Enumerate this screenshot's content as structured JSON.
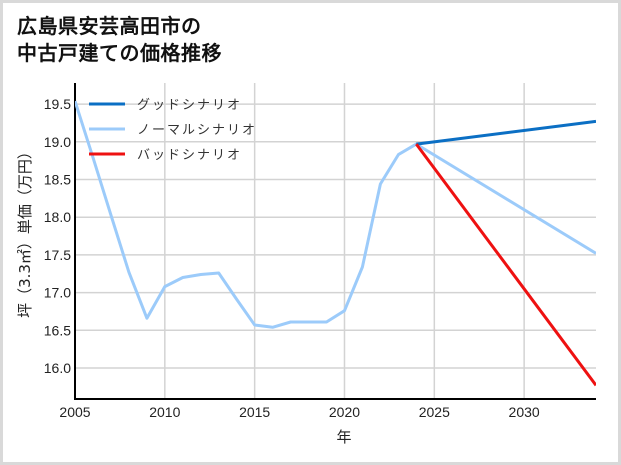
{
  "title": {
    "line1": "広島県安芸高田市の",
    "line2": "中古戸建ての価格推移"
  },
  "chart_data": {
    "type": "line",
    "title": "広島県安芸高田市の中古戸建ての価格推移",
    "xlabel": "年",
    "ylabel": "坪（3.3㎡）単価（万円）",
    "xlim": [
      2005,
      2034
    ],
    "ylim": [
      15.6,
      19.75
    ],
    "x_ticks": [
      2005,
      2010,
      2015,
      2020,
      2025,
      2030
    ],
    "y_ticks": [
      16.0,
      16.5,
      17.0,
      17.5,
      18.0,
      18.5,
      19.0,
      19.5
    ],
    "y_tick_labels": [
      "16.0",
      "16.5",
      "17.0",
      "17.5",
      "18.0",
      "18.5",
      "19.0",
      "19.5"
    ],
    "grid": true,
    "legend_position": "upper left",
    "series": [
      {
        "name": "グッドシナリオ",
        "color": "#0b6fc4",
        "x": [
          2024,
          2034
        ],
        "y": [
          18.97,
          19.27
        ]
      },
      {
        "name": "ノーマルシナリオ",
        "color": "#9ccbfa",
        "x": [
          2005,
          2006,
          2007,
          2008,
          2009,
          2010,
          2011,
          2012,
          2013,
          2014,
          2015,
          2016,
          2017,
          2018,
          2019,
          2020,
          2021,
          2022,
          2023,
          2024,
          2034
        ],
        "y": [
          19.54,
          18.79,
          18.03,
          17.27,
          16.66,
          17.08,
          17.2,
          17.24,
          17.26,
          16.91,
          16.57,
          16.54,
          16.61,
          16.61,
          16.61,
          16.76,
          17.34,
          18.44,
          18.83,
          18.97,
          17.52
        ]
      },
      {
        "name": "バッドシナリオ",
        "color": "#ee1111",
        "x": [
          2024,
          2034
        ],
        "y": [
          18.97,
          15.77
        ]
      }
    ]
  }
}
